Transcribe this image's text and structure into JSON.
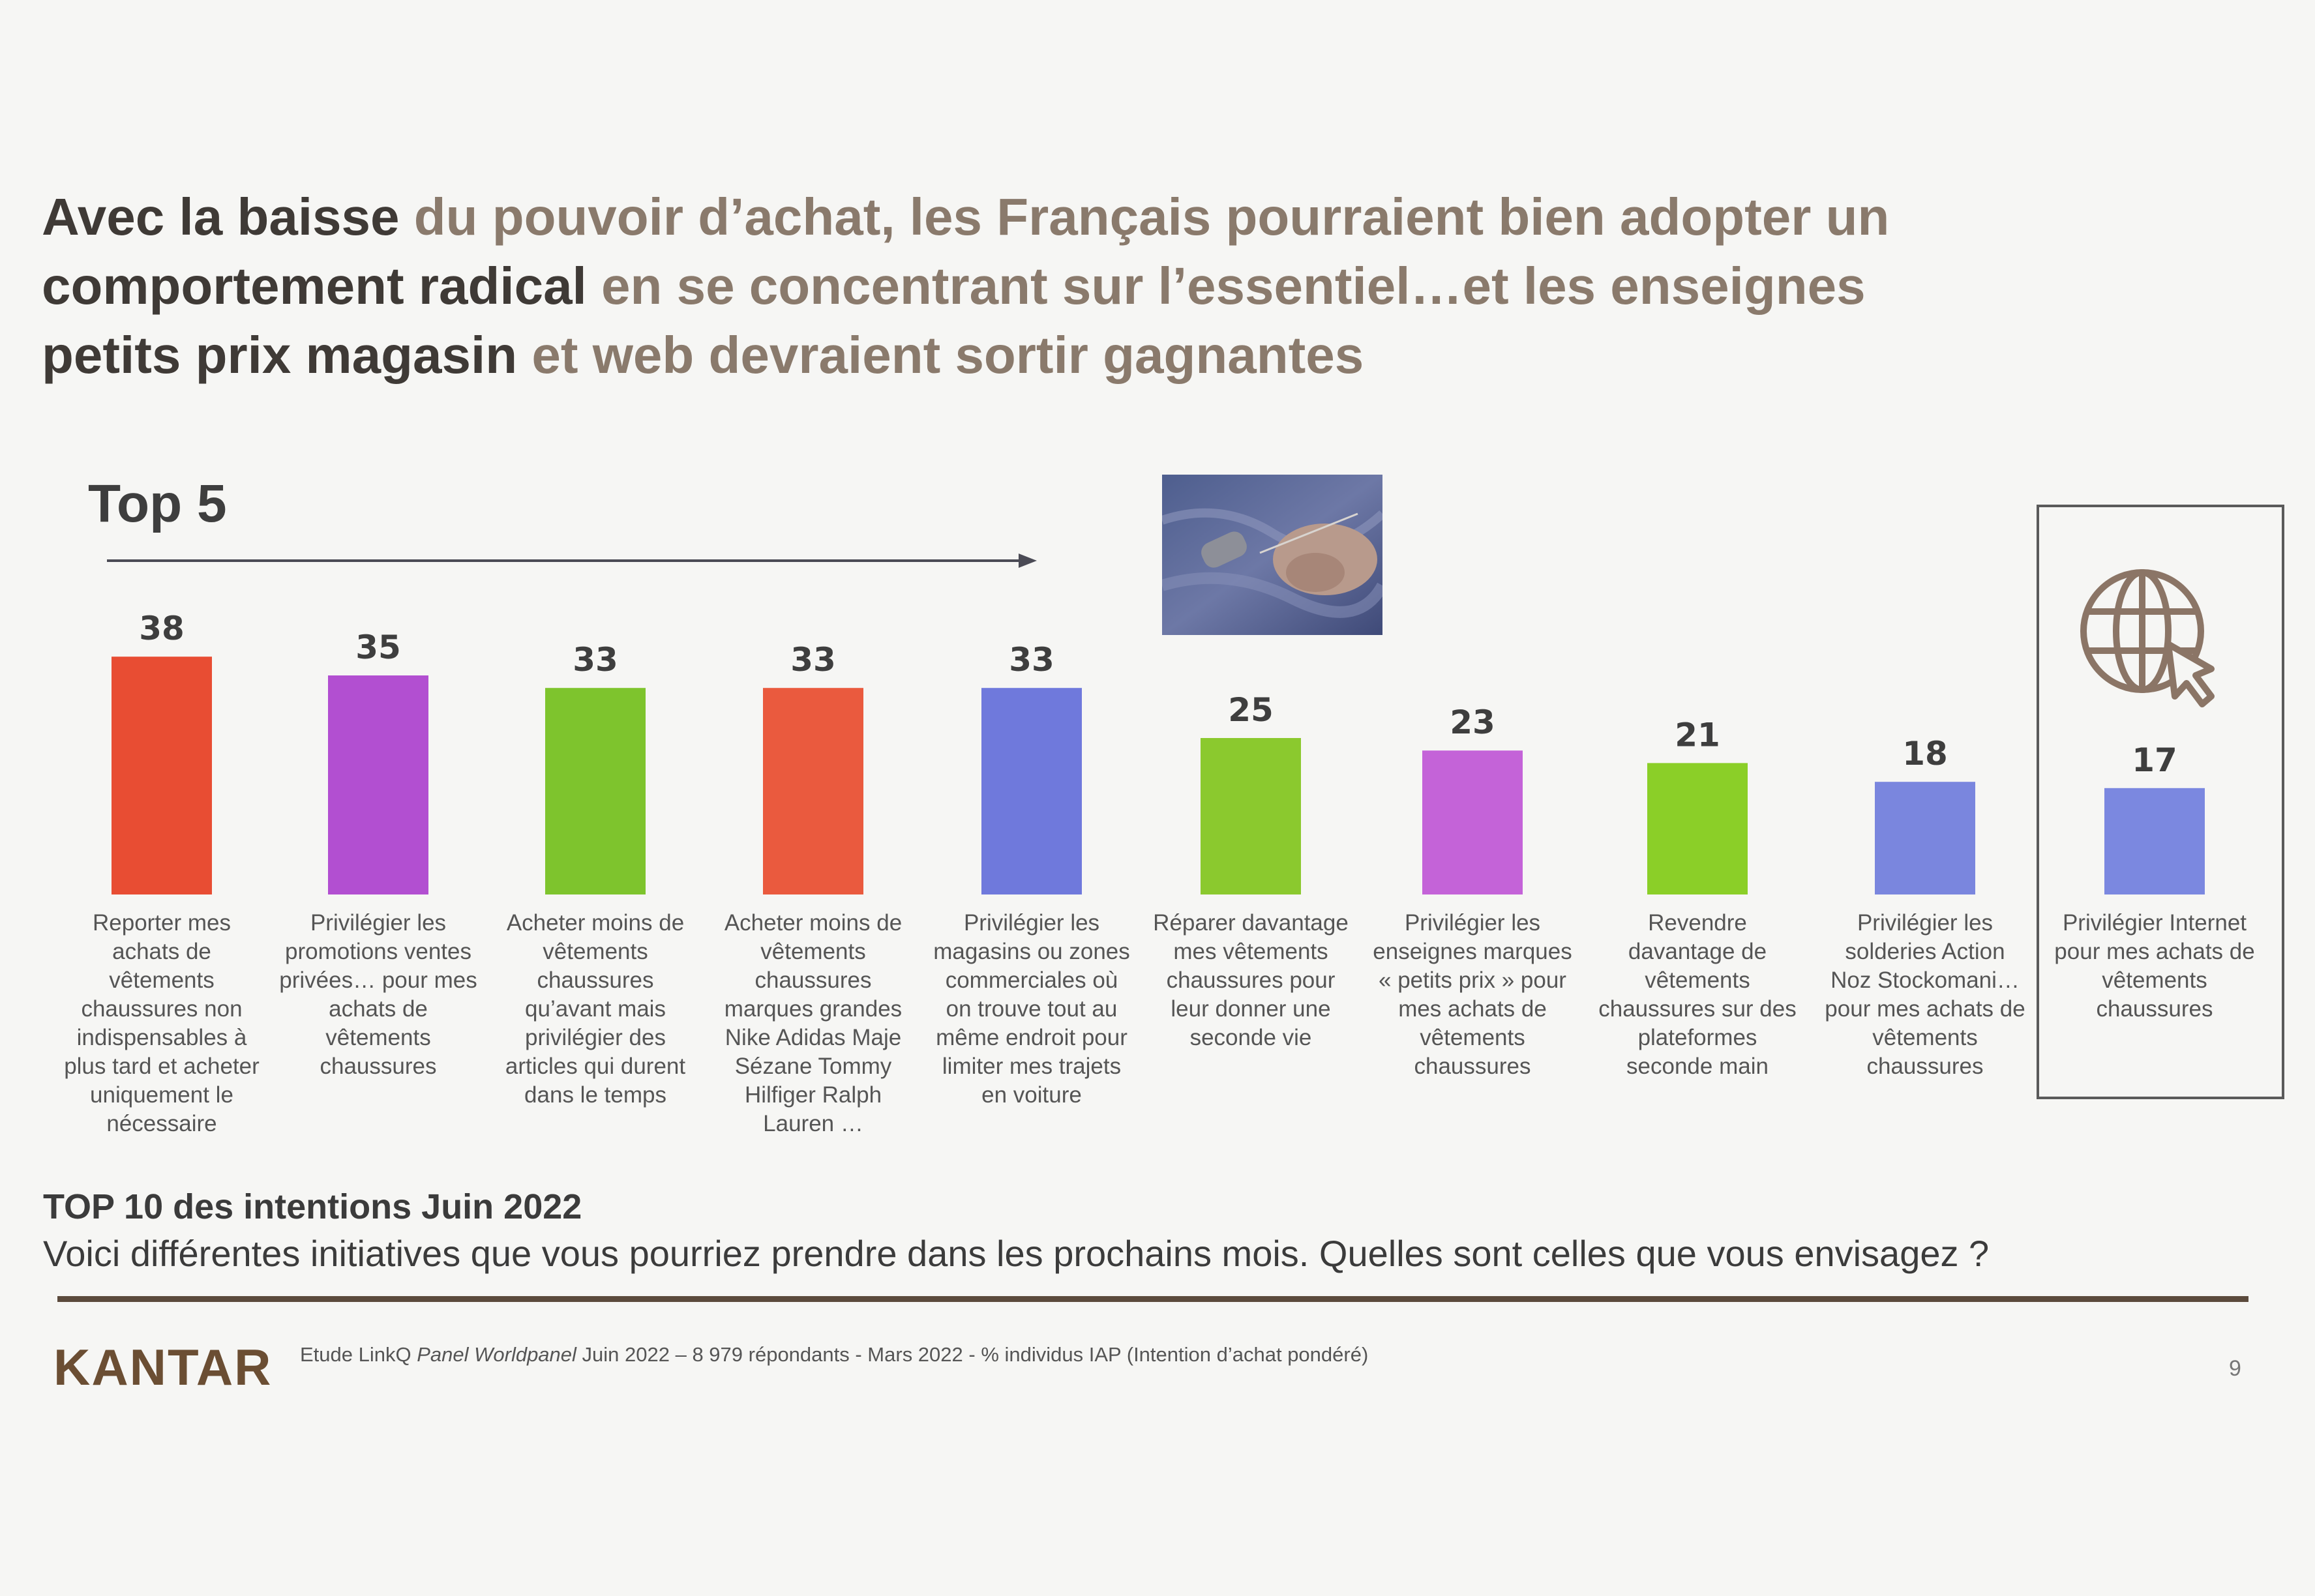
{
  "title": {
    "line1": {
      "dark": "Avec la baisse",
      "rest": " du pouvoir d’achat, les Français pourraient bien adopter un"
    },
    "line2": {
      "dark": "comportement radical",
      "rest": " en se concentrant sur l’essentiel…et les enseignes"
    },
    "line3": {
      "dark": "petits prix magasin",
      "rest": " et web devraient sortir gagnantes"
    }
  },
  "top5_label": "Top 5",
  "chart_data": {
    "type": "bar",
    "categories": [
      "Reporter mes achats de vêtements chaussures non indispensables à plus tard et acheter uniquement le nécessaire",
      "Privilégier les promotions ventes privées… pour mes achats de vêtements chaussures",
      "Acheter moins de vêtements chaussures qu’avant mais privilégier des articles qui durent dans le temps",
      "Acheter moins de vêtements chaussures marques grandes Nike Adidas Maje Sézane Tommy Hilfiger Ralph Lauren …",
      "Privilégier les magasins ou zones commerciales où on trouve tout au même endroit pour limiter mes trajets en voiture",
      "Réparer davantage mes vêtements chaussures pour leur donner une seconde vie",
      "Privilégier les enseignes marques « petits prix » pour mes achats de vêtements chaussures",
      "Revendre davantage de vêtements chaussures sur des plateformes seconde main",
      "Privilégier les solderies Action Noz Stockomani… pour mes achats de vêtements chaussures",
      "Privilégier Internet pour mes achats de vêtements chaussures"
    ],
    "values": [
      38,
      35,
      33,
      33,
      33,
      25,
      23,
      21,
      18,
      17
    ],
    "colors": [
      "#e84d33",
      "#b24fd1",
      "#7ec42d",
      "#ea5a3e",
      "#6f79dc",
      "#8bc92e",
      "#c463d8",
      "#8bcf28",
      "#7a86de",
      "#7b88e0"
    ],
    "value_labels": [
      "38",
      "35",
      "33",
      "33",
      "33",
      "25",
      "23",
      "21",
      "18",
      "17"
    ],
    "ylim": [
      0,
      40
    ]
  },
  "category_label_lines": [
    [
      "Reporter mes",
      "achats de",
      "vêtements",
      "chaussures non",
      "indispensables à",
      "plus tard et acheter",
      "uniquement le",
      "nécessaire"
    ],
    [
      "Privilégier les",
      "promotions ventes",
      "privées… pour mes",
      "achats de",
      "vêtements",
      "chaussures"
    ],
    [
      "Acheter moins de",
      "vêtements",
      "chaussures",
      "qu’avant mais",
      "privilégier des",
      "articles qui durent",
      "dans le temps"
    ],
    [
      "Acheter moins de",
      "vêtements",
      "chaussures",
      "marques grandes",
      "Nike Adidas Maje",
      "Sézane Tommy",
      "Hilfiger Ralph",
      "Lauren …"
    ],
    [
      "Privilégier les",
      "magasins ou zones",
      "commerciales où",
      "on trouve tout au",
      "même endroit pour",
      "limiter mes trajets",
      "en voiture"
    ],
    [
      "Réparer davantage",
      "mes vêtements",
      "chaussures pour",
      "leur donner une",
      "seconde vie"
    ],
    [
      "Privilégier les",
      "enseignes marques",
      "« petits prix » pour",
      "mes achats de",
      "vêtements",
      "chaussures"
    ],
    [
      "Revendre",
      "davantage de",
      "vêtements",
      "chaussures sur des",
      "plateformes",
      "seconde main"
    ],
    [
      "Privilégier les",
      "solderies Action",
      "Noz Stockomani…",
      "pour mes achats de",
      "vêtements",
      "chaussures"
    ],
    [
      "Privilégier Internet",
      "pour mes achats de",
      "vêtements",
      "chaussures"
    ]
  ],
  "subtitle": "TOP 10 des intentions Juin 2022",
  "question": "Voici différentes initiatives que vous pourriez prendre dans les prochains mois. Quelles sont celles que vous envisagez ?",
  "brand": "KANTAR",
  "source": {
    "pre": "Etude LinkQ ",
    "italic": "Panel Worldpanel",
    "post": " Juin 2022 – 8 979 répondants - Mars 2022 - % individus IAP (Intention d’achat pondéré)"
  },
  "page_number": "9",
  "icons": {
    "photo": "sewing-photo",
    "globe": "globe-cursor-icon"
  },
  "accent_color": "#5b4a3c"
}
